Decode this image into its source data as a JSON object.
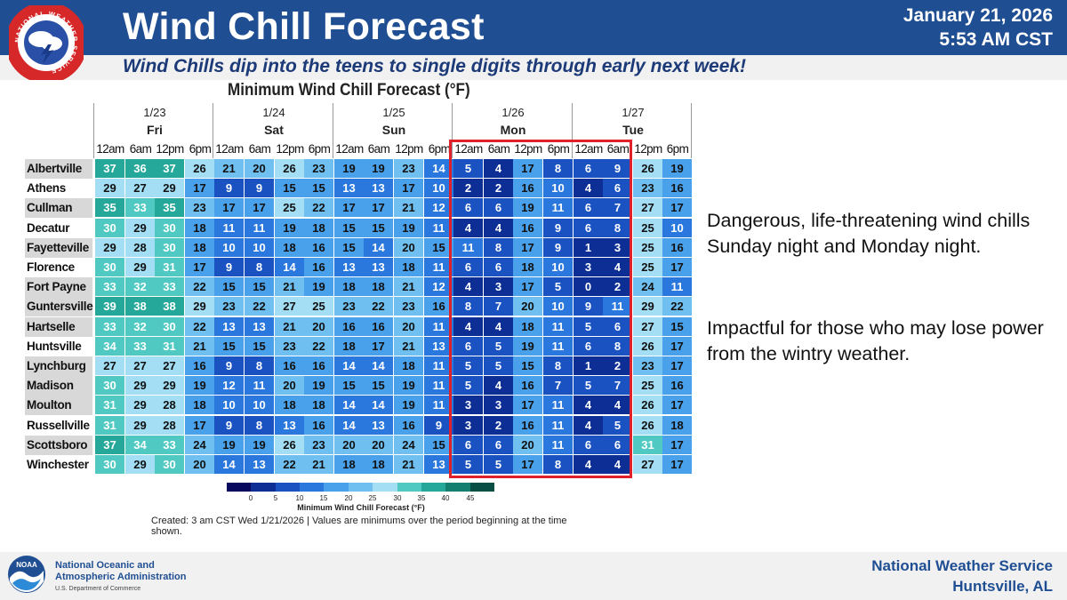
{
  "header": {
    "title": "Wind Chill Forecast",
    "date": "January 21, 2026",
    "time": "5:53 AM CST",
    "subtitle": "Wind Chills dip into the teens to single digits through early next week!",
    "nws_logo_text": "NATIONAL WEATHER SERVICE"
  },
  "chart_data": {
    "type": "table",
    "title": "Minimum Wind Chill Forecast (°F)",
    "days": [
      {
        "date": "1/23",
        "day": "Fri"
      },
      {
        "date": "1/24",
        "day": "Sat"
      },
      {
        "date": "1/25",
        "day": "Sun"
      },
      {
        "date": "1/26",
        "day": "Mon"
      },
      {
        "date": "1/27",
        "day": "Tue"
      }
    ],
    "periods": [
      "12am",
      "6am",
      "12pm",
      "6pm",
      "12am",
      "6am",
      "12pm",
      "6pm",
      "12am",
      "6am",
      "12pm",
      "6pm",
      "12am",
      "6am",
      "12pm",
      "6pm",
      "12am",
      "6am",
      "12pm",
      "6pm"
    ],
    "rows": [
      {
        "city": "Albertville",
        "values": [
          37,
          36,
          37,
          26,
          21,
          20,
          26,
          23,
          19,
          19,
          23,
          14,
          5,
          4,
          17,
          8,
          6,
          9,
          26,
          19
        ]
      },
      {
        "city": "Athens",
        "values": [
          29,
          27,
          29,
          17,
          9,
          9,
          15,
          15,
          13,
          13,
          17,
          10,
          2,
          2,
          16,
          10,
          4,
          6,
          23,
          16
        ]
      },
      {
        "city": "Cullman",
        "values": [
          35,
          33,
          35,
          23,
          17,
          17,
          25,
          22,
          17,
          17,
          21,
          12,
          6,
          6,
          19,
          11,
          6,
          7,
          27,
          17
        ]
      },
      {
        "city": "Decatur",
        "values": [
          30,
          29,
          30,
          18,
          11,
          11,
          19,
          18,
          15,
          15,
          19,
          11,
          4,
          4,
          16,
          9,
          6,
          8,
          25,
          10
        ]
      },
      {
        "city": "Fayetteville",
        "values": [
          29,
          28,
          30,
          18,
          10,
          10,
          18,
          16,
          15,
          14,
          20,
          15,
          11,
          8,
          17,
          9,
          1,
          3,
          25,
          16
        ]
      },
      {
        "city": "Florence",
        "values": [
          30,
          29,
          31,
          17,
          9,
          8,
          14,
          16,
          13,
          13,
          18,
          11,
          6,
          6,
          18,
          10,
          3,
          4,
          25,
          17
        ]
      },
      {
        "city": "Fort Payne",
        "values": [
          33,
          32,
          33,
          22,
          15,
          15,
          21,
          19,
          18,
          18,
          21,
          12,
          4,
          3,
          17,
          5,
          0,
          2,
          24,
          11
        ]
      },
      {
        "city": "Guntersville",
        "values": [
          39,
          38,
          38,
          29,
          23,
          22,
          27,
          25,
          23,
          22,
          23,
          16,
          8,
          7,
          20,
          10,
          9,
          11,
          29,
          22
        ]
      },
      {
        "city": "Hartselle",
        "values": [
          33,
          32,
          30,
          22,
          13,
          13,
          21,
          20,
          16,
          16,
          20,
          11,
          4,
          4,
          18,
          11,
          5,
          6,
          27,
          15
        ]
      },
      {
        "city": "Huntsville",
        "values": [
          34,
          33,
          31,
          21,
          15,
          15,
          23,
          22,
          18,
          17,
          21,
          13,
          6,
          5,
          19,
          11,
          6,
          8,
          26,
          17
        ]
      },
      {
        "city": "Lynchburg",
        "values": [
          27,
          27,
          27,
          16,
          9,
          8,
          16,
          16,
          14,
          14,
          18,
          11,
          5,
          5,
          15,
          8,
          1,
          2,
          23,
          17
        ]
      },
      {
        "city": "Madison",
        "values": [
          30,
          29,
          29,
          19,
          12,
          11,
          20,
          19,
          15,
          15,
          19,
          11,
          5,
          4,
          16,
          7,
          5,
          7,
          25,
          16
        ]
      },
      {
        "city": "Moulton",
        "values": [
          31,
          29,
          28,
          18,
          10,
          10,
          18,
          18,
          14,
          14,
          19,
          11,
          3,
          3,
          17,
          11,
          4,
          4,
          26,
          17
        ]
      },
      {
        "city": "Russellville",
        "values": [
          31,
          29,
          28,
          17,
          9,
          8,
          13,
          16,
          14,
          13,
          16,
          9,
          3,
          2,
          16,
          11,
          4,
          5,
          26,
          18
        ]
      },
      {
        "city": "Scottsboro",
        "values": [
          37,
          34,
          33,
          24,
          19,
          19,
          26,
          23,
          20,
          20,
          24,
          15,
          6,
          6,
          20,
          11,
          6,
          6,
          31,
          17
        ]
      },
      {
        "city": "Winchester",
        "values": [
          30,
          29,
          30,
          20,
          14,
          13,
          22,
          21,
          18,
          18,
          21,
          13,
          5,
          5,
          17,
          8,
          4,
          4,
          27,
          17
        ]
      }
    ],
    "shaded_cities": [
      "Albertville",
      "Cullman",
      "Fayetteville",
      "Fort Payne",
      "Guntersville",
      "Hartselle",
      "Lynchburg",
      "Madison",
      "Moulton",
      "Scottsboro"
    ],
    "colors": {
      "below_0": "#08085e",
      "0-5": "#0d2e95",
      "5-10": "#1a52c2",
      "10-15": "#2a78de",
      "15-20": "#4aa1eb",
      "20-25": "#6fc0f1",
      "25-30": "#a3def5",
      "30-35": "#4fc9c2",
      "35-40": "#25a89a",
      "40-45": "#13806f",
      "above_45": "#0a4f44"
    },
    "legend": {
      "ticks": [
        "0",
        "5",
        "10",
        "15",
        "20",
        "25",
        "30",
        "35",
        "40",
        "45"
      ],
      "title": "Minimum Wind Chill Forecast (°F)"
    },
    "highlight_color": "#e0202a",
    "note": "Created: 3 am CST Wed 1/21/2026  |  Values are minimums over the period beginning at the time shown."
  },
  "side_notes": [
    "Dangerous, life-threatening wind chills Sunday night and Monday night.",
    "Impactful for those who may lose power from the wintry weather."
  ],
  "footer": {
    "noaa_name_line1": "National Oceanic and",
    "noaa_name_line2": "Atmospheric Administration",
    "noaa_dept": "U.S. Department of Commerce",
    "nws_name": "National Weather Service",
    "nws_office": "Huntsville, AL"
  }
}
